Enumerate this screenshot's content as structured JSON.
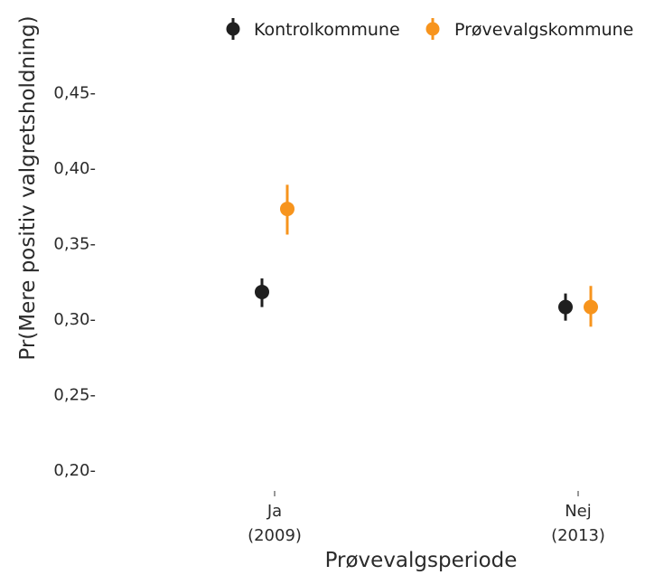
{
  "chart_data": {
    "type": "scatter",
    "title": "",
    "xlabel": "Prøvevalgsperiode",
    "ylabel": "Pr(Mere positiv valgretsholdning)",
    "categories": [
      {
        "line1": "Ja",
        "line2": "(2009)"
      },
      {
        "line1": "Nej",
        "line2": "(2013)"
      }
    ],
    "ylim": [
      0.2,
      0.46
    ],
    "yticks": [
      {
        "value": 0.2,
        "label": "0,20-"
      },
      {
        "value": 0.25,
        "label": "0,25-"
      },
      {
        "value": 0.3,
        "label": "0,30-"
      },
      {
        "value": 0.35,
        "label": "0,35-"
      },
      {
        "value": 0.4,
        "label": "0,40-"
      },
      {
        "value": 0.45,
        "label": "0,45-"
      }
    ],
    "grid": false,
    "legend_position": "top",
    "series": [
      {
        "name": "Kontrolkommune",
        "color": "#1f1f1f",
        "points": [
          {
            "category": 0,
            "estimate": 0.318,
            "lower": 0.308,
            "upper": 0.327
          },
          {
            "category": 1,
            "estimate": 0.308,
            "lower": 0.299,
            "upper": 0.317
          }
        ]
      },
      {
        "name": "Prøvevalgskommune",
        "color": "#f7941d",
        "points": [
          {
            "category": 0,
            "estimate": 0.373,
            "lower": 0.356,
            "upper": 0.389
          },
          {
            "category": 1,
            "estimate": 0.308,
            "lower": 0.295,
            "upper": 0.322
          }
        ]
      }
    ]
  }
}
